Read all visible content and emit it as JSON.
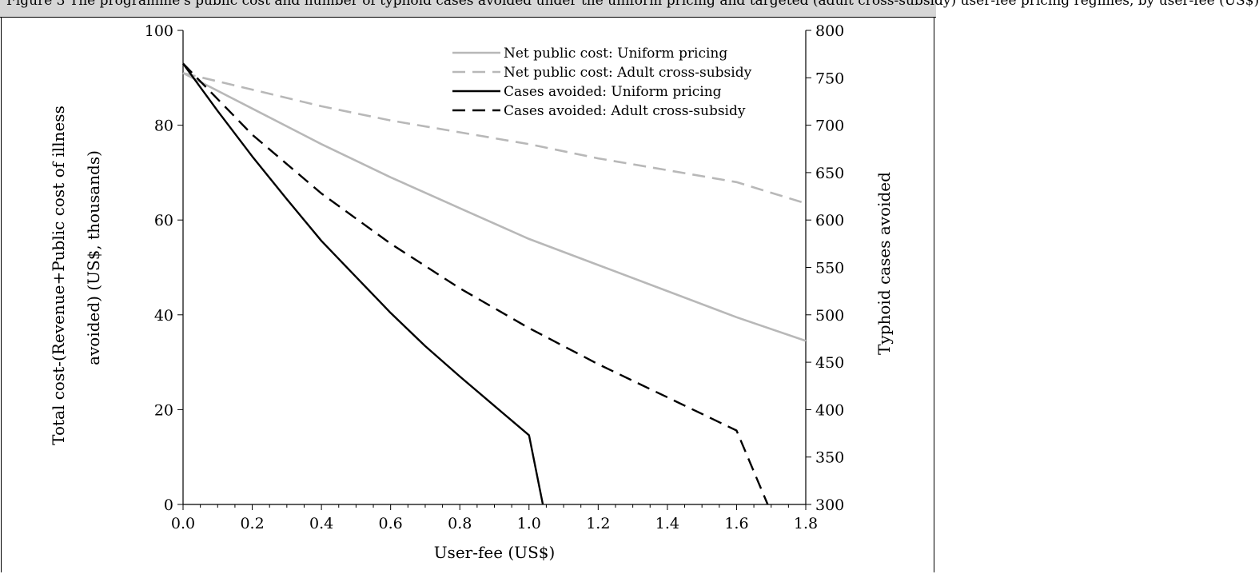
{
  "caption": "Figure 3 The programme's public cost and number of typhoid cases avoided under the uniform pricing and targeted (adult cross-subsidy) user-fee pricing regimes, by user-fee (US$)",
  "chart_data": {
    "type": "line",
    "title": "",
    "xlabel": "User-fee (US$)",
    "ylabel": "Total cost-(Revenue+Public cost of illness avoided) (US$, thousands)",
    "ylabel_lines": [
      "Total cost-(Revenue+Public cost of illness",
      "avoided) (US$, thousands)"
    ],
    "y2label": "Typhoid cases avoided",
    "xlim": [
      0,
      1.8
    ],
    "ylim": [
      0,
      100
    ],
    "y2lim": [
      300,
      800
    ],
    "x_ticks": [
      "0.0",
      "0.2",
      "0.4",
      "0.6",
      "0.8",
      "1.0",
      "1.2",
      "1.4",
      "1.6",
      "1.8"
    ],
    "y_ticks": [
      "0",
      "20",
      "40",
      "60",
      "80",
      "100"
    ],
    "y2_ticks": [
      "300",
      "350",
      "400",
      "450",
      "500",
      "550",
      "600",
      "650",
      "700",
      "750",
      "800"
    ],
    "grid": false,
    "legend_position": "top-right",
    "series": [
      {
        "name": "Net public cost: Uniform pricing",
        "axis": "left",
        "color": "#b8b8b8",
        "dash": "solid",
        "x": [
          0,
          0.2,
          0.4,
          0.6,
          0.8,
          1.0,
          1.2,
          1.4,
          1.6,
          1.8
        ],
        "y": [
          91,
          83.5,
          76,
          69,
          62.5,
          56,
          50.5,
          45,
          39.5,
          34.5
        ]
      },
      {
        "name": "Net public cost: Adult cross-subsidy",
        "axis": "left",
        "color": "#b8b8b8",
        "dash": "dashed",
        "x": [
          0,
          0.2,
          0.4,
          0.6,
          0.8,
          1.0,
          1.2,
          1.4,
          1.6,
          1.8
        ],
        "y": [
          91,
          87.5,
          84,
          81,
          78.5,
          76,
          73,
          70.5,
          68,
          63.5
        ]
      },
      {
        "name": "Cases avoided: Uniform pricing",
        "axis": "right",
        "color": "#000000",
        "dash": "solid",
        "x": [
          0,
          0.1,
          0.2,
          0.3,
          0.4,
          0.5,
          0.6,
          0.7,
          0.8,
          0.9,
          1.0,
          1.04
        ],
        "y": [
          765,
          715,
          667,
          622,
          578,
          540,
          502,
          467,
          435,
          404,
          373,
          300
        ]
      },
      {
        "name": "Cases avoided: Adult cross-subsidy",
        "axis": "right",
        "color": "#000000",
        "dash": "dashed",
        "x": [
          0,
          0.2,
          0.4,
          0.6,
          0.8,
          1.0,
          1.2,
          1.4,
          1.6,
          1.69
        ],
        "y": [
          765,
          690,
          628,
          575,
          528,
          486,
          448,
          413,
          378,
          300
        ]
      }
    ]
  }
}
